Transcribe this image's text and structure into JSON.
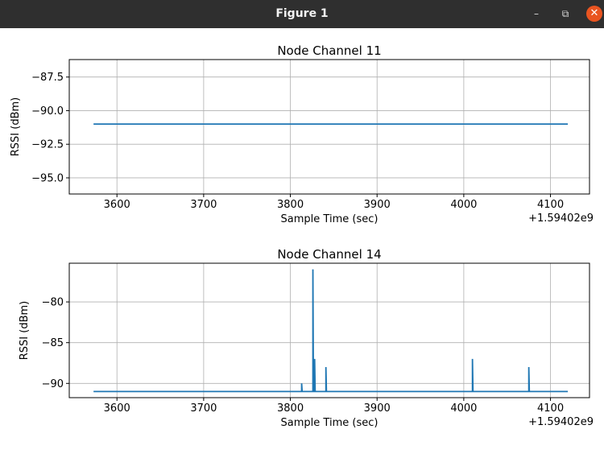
{
  "window": {
    "title": "Figure 1",
    "minimize_glyph": "–",
    "maximize_glyph": "⧉",
    "close_glyph": "✕"
  },
  "chart_data": [
    {
      "type": "line",
      "title": "Node Channel 11",
      "xlabel": "Sample Time (sec)",
      "ylabel": "RSSI (dBm)",
      "x_offset_label": "+1.59402e9",
      "xlim": [
        3545,
        4145
      ],
      "ylim": [
        -96.2,
        -86.2
      ],
      "xticks": [
        3600,
        3700,
        3800,
        3900,
        4000,
        4100
      ],
      "xtick_labels": [
        "3600",
        "3700",
        "3800",
        "3900",
        "4000",
        "4100"
      ],
      "yticks": [
        -87.5,
        -90.0,
        -92.5,
        -95.0
      ],
      "ytick_labels": [
        "−87.5",
        "−90.0",
        "−92.5",
        "−95.0"
      ],
      "grid": true,
      "series": [
        {
          "color": "#1f77b4",
          "x": [
            3573,
            4120
          ],
          "y": [
            -91,
            -91
          ]
        }
      ]
    },
    {
      "type": "line",
      "title": "Node Channel 14",
      "xlabel": "Sample Time (sec)",
      "ylabel": "RSSI (dBm)",
      "x_offset_label": "+1.59402e9",
      "xlim": [
        3545,
        4145
      ],
      "ylim": [
        -91.75,
        -75.25
      ],
      "xticks": [
        3600,
        3700,
        3800,
        3900,
        4000,
        4100
      ],
      "xtick_labels": [
        "3600",
        "3700",
        "3800",
        "3900",
        "4000",
        "4100"
      ],
      "yticks": [
        -80,
        -85,
        -90
      ],
      "ytick_labels": [
        "−80",
        "−85",
        "−90"
      ],
      "grid": true,
      "series": [
        {
          "color": "#1f77b4",
          "x": [
            3573,
            3813,
            3813,
            3813.6,
            3826,
            3826,
            3826.6,
            3828,
            3828,
            3828.6,
            3841,
            3841,
            3841.6,
            4010,
            4010,
            4010.6,
            4075,
            4075,
            4075.6,
            4120
          ],
          "y": [
            -91,
            -91,
            -90,
            -91,
            -91,
            -76,
            -91,
            -91,
            -87,
            -91,
            -91,
            -88,
            -91,
            -91,
            -87,
            -91,
            -91,
            -88,
            -91,
            -91
          ]
        }
      ]
    }
  ]
}
